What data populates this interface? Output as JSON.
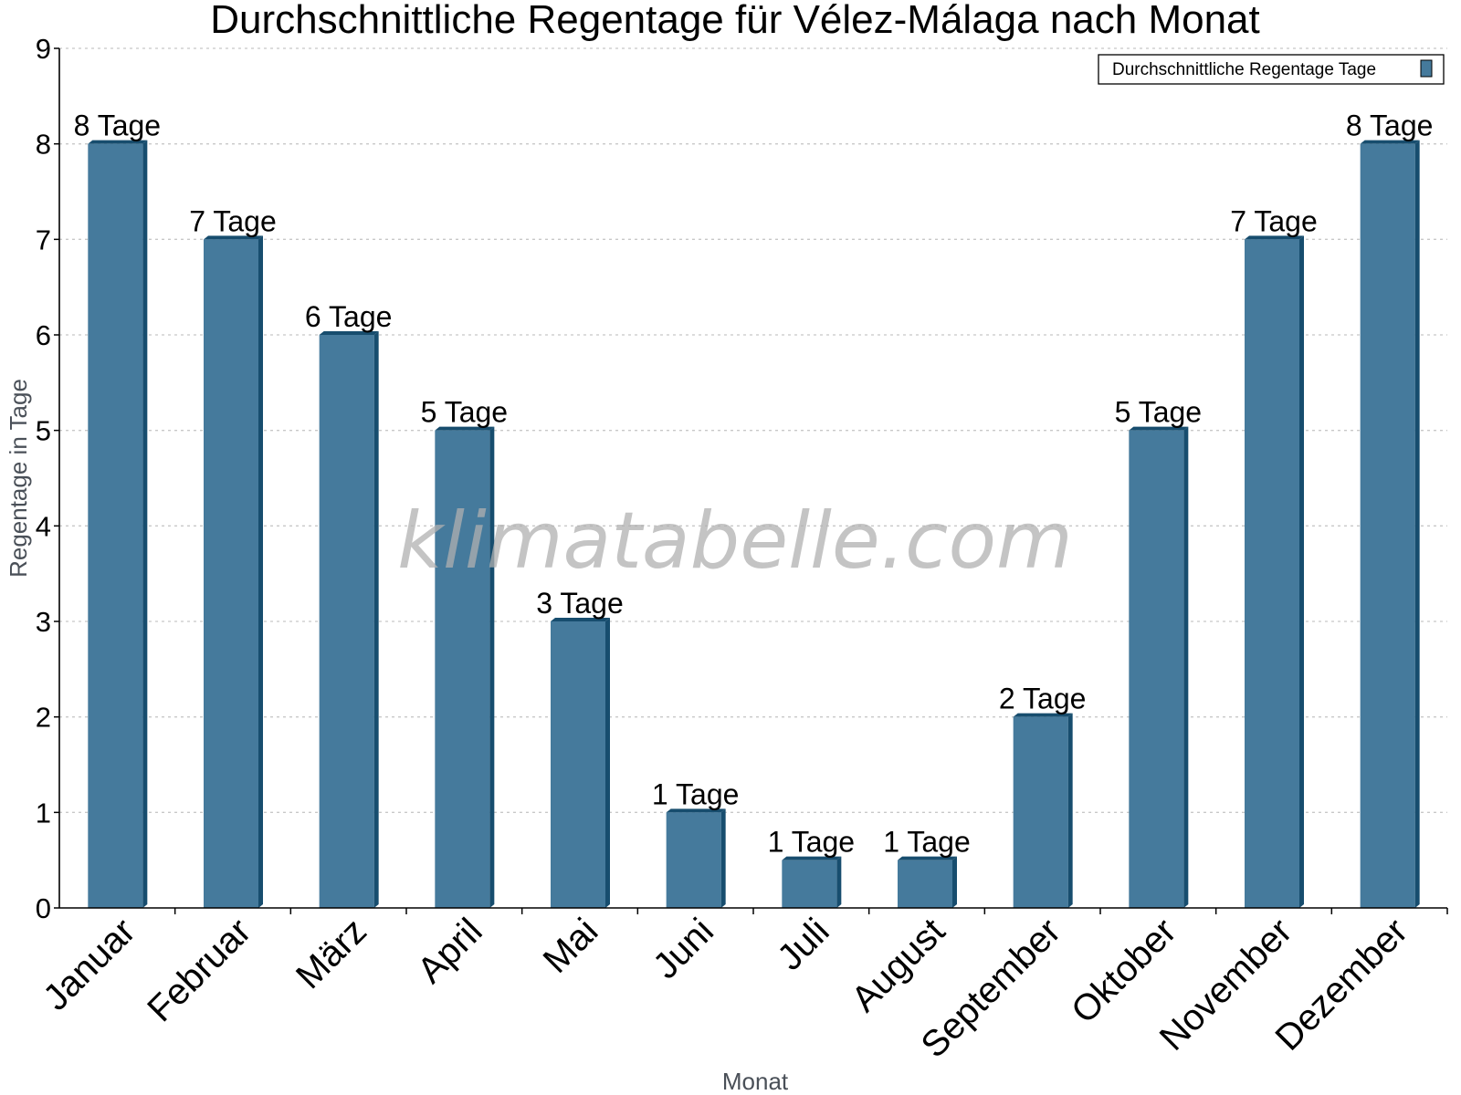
{
  "chart_data": {
    "type": "bar",
    "title": "Durchschnittliche Regentage für Vélez-Málaga nach Monat",
    "xlabel": "Monat",
    "ylabel": "Regentage in Tage",
    "ylim": [
      0,
      9
    ],
    "yticks": [
      0,
      1,
      2,
      3,
      4,
      5,
      6,
      7,
      8,
      9
    ],
    "grid": true,
    "legend_position": "top-right",
    "categories": [
      "Januar",
      "Februar",
      "März",
      "April",
      "Mai",
      "Juni",
      "Juli",
      "August",
      "September",
      "Oktober",
      "November",
      "Dezember"
    ],
    "series": [
      {
        "name": "Durchschnittliche Regentage Tage",
        "color": "#457a9c",
        "values": [
          8,
          7,
          6,
          5,
          3,
          1,
          0.5,
          0.5,
          2,
          5,
          7,
          8
        ],
        "labels": [
          "8 Tage",
          "7 Tage",
          "6 Tage",
          "5 Tage",
          "3 Tage",
          "1 Tage",
          "1 Tage",
          "1 Tage",
          "2 Tage",
          "5 Tage",
          "7 Tage",
          "8 Tage"
        ]
      }
    ],
    "watermark": "klimatabelle.com"
  },
  "colors": {
    "bar_front": "#457a9c",
    "bar_side": "#174d6e",
    "axis": "#000000",
    "grid": "#c8c8c8",
    "axis_title": "#4a5058"
  }
}
